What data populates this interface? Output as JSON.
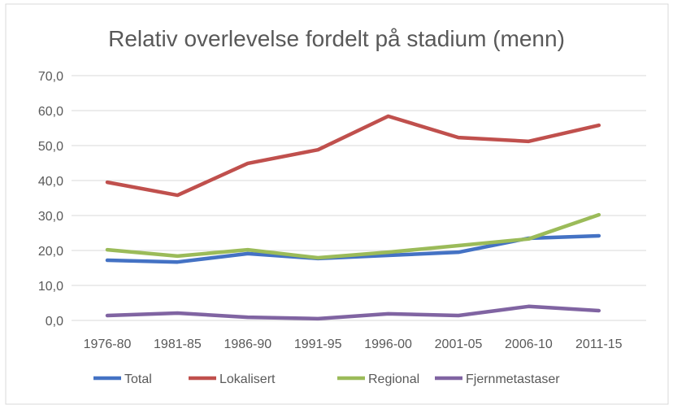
{
  "chart_data": {
    "type": "line",
    "title": "Relativ overlevelse fordelt på stadium (menn)",
    "xlabel": "",
    "ylabel": "",
    "categories": [
      "1976-80",
      "1981-85",
      "1986-90",
      "1991-95",
      "1996-00",
      "2001-05",
      "2006-10",
      "2011-15"
    ],
    "ylim": [
      0,
      70
    ],
    "yticks": [
      "0,0",
      "10,0",
      "20,0",
      "30,0",
      "40,0",
      "50,0",
      "60,0",
      "70,0"
    ],
    "grid": true,
    "legend_position": "bottom",
    "series": [
      {
        "name": "Total",
        "color": "#4472C4",
        "values": [
          17.2,
          16.7,
          19.1,
          17.7,
          18.6,
          19.5,
          23.5,
          24.2
        ]
      },
      {
        "name": "Lokalisert",
        "color": "#C0504D",
        "values": [
          39.5,
          35.8,
          44.9,
          48.8,
          58.4,
          52.3,
          51.2,
          55.8
        ]
      },
      {
        "name": "Regional",
        "color": "#9BBB59",
        "values": [
          20.2,
          18.4,
          20.2,
          17.9,
          19.5,
          21.4,
          23.3,
          30.2
        ]
      },
      {
        "name": "Fjernmetastaser",
        "color": "#8064A2",
        "values": [
          1.4,
          2.1,
          0.9,
          0.5,
          1.9,
          1.4,
          4.0,
          2.8
        ]
      }
    ]
  }
}
